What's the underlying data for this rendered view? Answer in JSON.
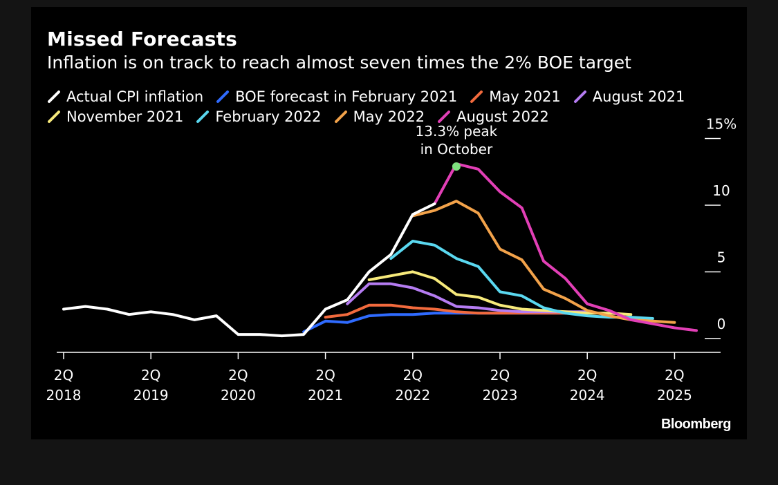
{
  "chart_data": {
    "type": "line",
    "title": "Missed Forecasts",
    "subtitle": "Inflation is on track to reach almost seven times the 2% BOE target",
    "brand": "Bloomberg",
    "ylim": [
      -1,
      15
    ],
    "y_ticks": [
      {
        "value": 15,
        "label": "15%"
      },
      {
        "value": 10,
        "label": "10"
      },
      {
        "value": 5,
        "label": "5"
      },
      {
        "value": 0,
        "label": "0"
      }
    ],
    "x_ticks": [
      {
        "q": 0,
        "line1": "2Q",
        "line2": "2018"
      },
      {
        "q": 4,
        "line1": "2Q",
        "line2": "2019"
      },
      {
        "q": 8,
        "line1": "2Q",
        "line2": "2020"
      },
      {
        "q": 12,
        "line1": "2Q",
        "line2": "2021"
      },
      {
        "q": 16,
        "line1": "2Q",
        "line2": "2022"
      },
      {
        "q": 20,
        "line1": "2Q",
        "line2": "2023"
      },
      {
        "q": 24,
        "line1": "2Q",
        "line2": "2024"
      },
      {
        "q": 28,
        "line1": "2Q",
        "line2": "2025"
      }
    ],
    "x_note": "x values are quarters elapsed since 2Q 2018",
    "annotation": {
      "line1": "13.3% peak",
      "line2": "in October",
      "x": 18,
      "y": 12.8,
      "color": "#7fe07f"
    },
    "series": [
      {
        "name": "Actual CPI inflation",
        "color": "#ffffff",
        "x": [
          0,
          1,
          2,
          3,
          4,
          5,
          6,
          7,
          8,
          9,
          10,
          11,
          12,
          13,
          14,
          15,
          16,
          17
        ],
        "y": [
          2.1,
          2.3,
          2.1,
          1.7,
          1.9,
          1.7,
          1.3,
          1.6,
          0.2,
          0.2,
          0.1,
          0.2,
          2.1,
          2.8,
          4.9,
          6.2,
          9.2,
          10.0
        ]
      },
      {
        "name": "BOE forecast in February 2021",
        "color": "#2f6bff",
        "x": [
          11,
          12,
          13,
          14,
          15,
          16,
          17,
          18,
          19,
          20,
          21,
          22,
          23,
          24
        ],
        "y": [
          0.4,
          1.2,
          1.1,
          1.6,
          1.7,
          1.7,
          1.8,
          1.8,
          1.8,
          1.8,
          1.8,
          1.8,
          1.8,
          1.8
        ]
      },
      {
        "name": "May 2021",
        "color": "#f26a3d",
        "x": [
          12,
          13,
          14,
          15,
          16,
          17,
          18,
          19,
          20,
          21,
          22,
          23,
          24
        ],
        "y": [
          1.5,
          1.7,
          2.4,
          2.4,
          2.2,
          2.1,
          1.9,
          1.8,
          1.8,
          1.8,
          1.8,
          1.8,
          1.8
        ]
      },
      {
        "name": "August 2021",
        "color": "#b57cf2",
        "x": [
          13,
          14,
          15,
          16,
          17,
          18,
          19,
          20,
          21,
          22,
          23,
          24
        ],
        "y": [
          2.5,
          4.0,
          4.0,
          3.7,
          3.1,
          2.3,
          2.2,
          2.0,
          1.9,
          1.9,
          1.9,
          1.9
        ]
      },
      {
        "name": "November 2021",
        "color": "#f7ea7b",
        "x": [
          14,
          15,
          16,
          17,
          18,
          19,
          20,
          21,
          22,
          23,
          24,
          25,
          26
        ],
        "y": [
          4.3,
          4.6,
          4.9,
          4.4,
          3.2,
          3.0,
          2.4,
          2.1,
          2.0,
          1.9,
          1.8,
          1.8,
          1.7
        ]
      },
      {
        "name": "February 2022",
        "color": "#5ad8f0",
        "x": [
          15,
          16,
          17,
          18,
          19,
          20,
          21,
          22,
          23,
          24,
          25,
          26,
          27
        ],
        "y": [
          5.9,
          7.2,
          6.9,
          5.9,
          5.3,
          3.4,
          3.1,
          2.2,
          1.8,
          1.6,
          1.5,
          1.5,
          1.4
        ]
      },
      {
        "name": "May 2022",
        "color": "#f2a24a",
        "x": [
          16,
          17,
          18,
          19,
          20,
          21,
          22,
          23,
          24,
          25,
          26,
          27,
          28
        ],
        "y": [
          9.1,
          9.5,
          10.2,
          9.3,
          6.6,
          5.8,
          3.6,
          2.9,
          2.0,
          1.6,
          1.3,
          1.2,
          1.1
        ]
      },
      {
        "name": "August 2022",
        "color": "#e23fb6",
        "x": [
          17,
          18,
          19,
          20,
          21,
          22,
          23,
          24,
          25,
          26,
          27,
          28,
          29
        ],
        "y": [
          10.0,
          13.0,
          12.6,
          10.9,
          9.7,
          5.7,
          4.4,
          2.5,
          2.0,
          1.3,
          1.0,
          0.7,
          0.5
        ]
      }
    ]
  }
}
